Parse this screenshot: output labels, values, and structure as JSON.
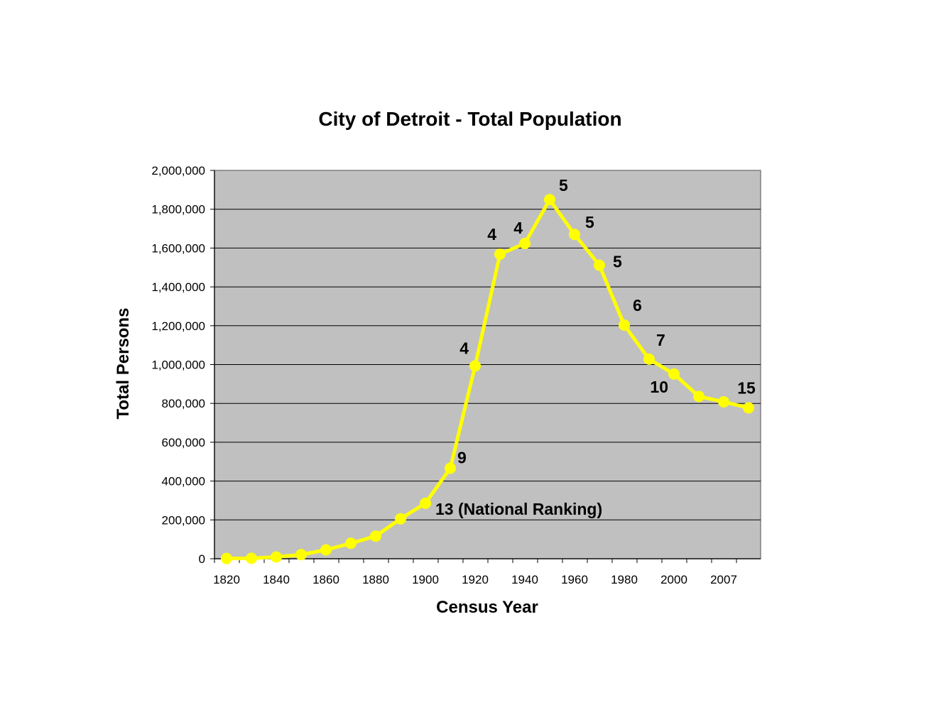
{
  "chart_data": {
    "type": "line",
    "title": "City of Detroit - Total Population",
    "xlabel": "Census Year",
    "ylabel": "Total Persons",
    "x_tick_labels": [
      "1820",
      "1840",
      "1860",
      "1880",
      "1900",
      "1920",
      "1940",
      "1960",
      "1980",
      "2000",
      "2007"
    ],
    "y_tick_labels": [
      "0",
      "200,000",
      "400,000",
      "600,000",
      "800,000",
      "1,000,000",
      "1,200,000",
      "1,400,000",
      "1,600,000",
      "1,800,000",
      "2,000,000"
    ],
    "ylim": [
      0,
      2000000
    ],
    "grid": true,
    "background": "#c0c0c0",
    "series": [
      {
        "color": "#ffff00",
        "points": [
          {
            "x": "1820",
            "y": 1422
          },
          {
            "x": "1830",
            "y": 2222
          },
          {
            "x": "1840",
            "y": 9102
          },
          {
            "x": "1850",
            "y": 21019
          },
          {
            "x": "1860",
            "y": 45619
          },
          {
            "x": "1870",
            "y": 79577
          },
          {
            "x": "1880",
            "y": 116340
          },
          {
            "x": "1890",
            "y": 205876
          },
          {
            "x": "1900",
            "y": 285704
          },
          {
            "x": "1910",
            "y": 465766
          },
          {
            "x": "1920",
            "y": 993078
          },
          {
            "x": "1930",
            "y": 1568662
          },
          {
            "x": "1940",
            "y": 1623452
          },
          {
            "x": "1950",
            "y": 1849568
          },
          {
            "x": "1960",
            "y": 1670144
          },
          {
            "x": "1970",
            "y": 1511482
          },
          {
            "x": "1980",
            "y": 1203339
          },
          {
            "x": "1990",
            "y": 1027974
          },
          {
            "x": "2000",
            "y": 951270
          },
          {
            "x": "2005",
            "y": 836056
          },
          {
            "x": "2007",
            "y": 808000
          },
          {
            "x": "2008",
            "y": 777000
          }
        ]
      }
    ],
    "annotations": [
      {
        "text": "13 (National Ranking)",
        "point_index": 8
      },
      {
        "text": "9",
        "point_index": 9
      },
      {
        "text": "4",
        "point_index": 10
      },
      {
        "text": "4",
        "point_index": 11
      },
      {
        "text": "4",
        "point_index": 12
      },
      {
        "text": "5",
        "point_index": 13
      },
      {
        "text": "5",
        "point_index": 14
      },
      {
        "text": "5",
        "point_index": 15
      },
      {
        "text": "6",
        "point_index": 16
      },
      {
        "text": "7",
        "point_index": 17
      },
      {
        "text": "10",
        "point_index": 18
      },
      {
        "text": "15",
        "point_index": 21
      }
    ]
  }
}
